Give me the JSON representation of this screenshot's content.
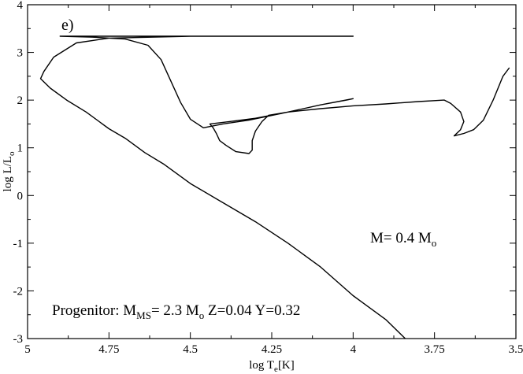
{
  "chart_data": {
    "type": "line",
    "panel_label": "e)",
    "xlabel": {
      "main": "log T",
      "sub": "e",
      "tail": "[K]"
    },
    "ylabel": {
      "main": "log L/L",
      "sub": "o"
    },
    "xlim": [
      5,
      3.5
    ],
    "ylim": [
      -3,
      4
    ],
    "x_ticks": [
      5,
      4.75,
      4.5,
      4.25,
      4,
      3.75,
      3.5
    ],
    "x_tick_labels": [
      "5",
      "4.75",
      "4.5",
      "4.25",
      "4",
      "3.75",
      "3.5"
    ],
    "y_ticks": [
      -3,
      -2,
      -1,
      0,
      1,
      2,
      3,
      4
    ],
    "y_tick_labels": [
      "-3",
      "-2",
      "-1",
      "0",
      "1",
      "2",
      "3",
      "4"
    ],
    "grid": false,
    "mass_annotation": {
      "prefix": "M= 0.4 M",
      "sub": "o"
    },
    "progenitor_annotation": {
      "prefix": "Progenitor: M",
      "sub1": "MS",
      "mid": "= 2.3 M",
      "sub2": "o",
      "tail": " Z=0.04 Y=0.32"
    },
    "series": [
      {
        "values": [
          [
            3.52,
            2.68
          ],
          [
            3.54,
            2.5
          ],
          [
            3.57,
            2.0
          ],
          [
            3.6,
            1.58
          ],
          [
            3.63,
            1.38
          ],
          [
            3.66,
            1.3
          ],
          [
            3.69,
            1.25
          ],
          [
            3.69,
            1.25
          ],
          [
            3.67,
            1.38
          ],
          [
            3.66,
            1.55
          ],
          [
            3.67,
            1.75
          ],
          [
            3.7,
            1.93
          ],
          [
            3.72,
            2.0
          ],
          [
            3.72,
            2.0
          ],
          [
            3.8,
            1.97
          ],
          [
            3.9,
            1.92
          ],
          [
            4.0,
            1.88
          ],
          [
            4.1,
            1.82
          ],
          [
            4.2,
            1.75
          ],
          [
            4.26,
            1.68
          ],
          [
            4.26,
            1.68
          ],
          [
            4.28,
            1.55
          ],
          [
            4.3,
            1.35
          ],
          [
            4.31,
            1.15
          ],
          [
            4.31,
            0.95
          ],
          [
            4.32,
            0.88
          ],
          [
            4.32,
            0.88
          ],
          [
            4.36,
            0.92
          ],
          [
            4.39,
            1.05
          ],
          [
            4.41,
            1.15
          ],
          [
            4.42,
            1.3
          ],
          [
            4.43,
            1.42
          ],
          [
            4.44,
            1.5
          ],
          [
            4.44,
            1.5
          ],
          [
            4.38,
            1.55
          ],
          [
            4.3,
            1.62
          ],
          [
            4.2,
            1.75
          ],
          [
            4.1,
            1.9
          ],
          [
            4.02,
            2.0
          ],
          [
            4.0,
            2.03
          ],
          [
            4.0,
            2.03
          ],
          [
            4.1,
            1.9
          ],
          [
            4.22,
            1.72
          ],
          [
            4.32,
            1.58
          ],
          [
            4.4,
            1.5
          ],
          [
            4.46,
            1.42
          ],
          [
            4.46,
            1.42
          ],
          [
            4.5,
            1.6
          ],
          [
            4.53,
            1.95
          ],
          [
            4.56,
            2.4
          ],
          [
            4.59,
            2.85
          ],
          [
            4.63,
            3.15
          ],
          [
            4.7,
            3.28
          ],
          [
            4.7,
            3.28
          ],
          [
            4.8,
            3.32
          ],
          [
            4.9,
            3.34
          ],
          [
            4.0,
            3.34
          ],
          [
            4.0,
            3.34
          ],
          [
            4.25,
            3.34
          ],
          [
            4.5,
            3.34
          ],
          [
            4.75,
            3.3
          ],
          [
            4.85,
            3.2
          ],
          [
            4.92,
            2.9
          ],
          [
            4.95,
            2.6
          ],
          [
            4.96,
            2.45
          ],
          [
            4.96,
            2.45
          ],
          [
            4.93,
            2.25
          ],
          [
            4.88,
            2.0
          ],
          [
            4.82,
            1.75
          ],
          [
            4.75,
            1.4
          ],
          [
            4.7,
            1.2
          ],
          [
            4.64,
            0.9
          ],
          [
            4.64,
            0.9
          ],
          [
            4.58,
            0.65
          ],
          [
            4.5,
            0.25
          ],
          [
            4.4,
            -0.15
          ],
          [
            4.3,
            -0.55
          ],
          [
            4.2,
            -1.0
          ],
          [
            4.1,
            -1.5
          ],
          [
            4.0,
            -2.1
          ],
          [
            3.9,
            -2.6
          ],
          [
            3.84,
            -3.0
          ]
        ]
      }
    ]
  }
}
